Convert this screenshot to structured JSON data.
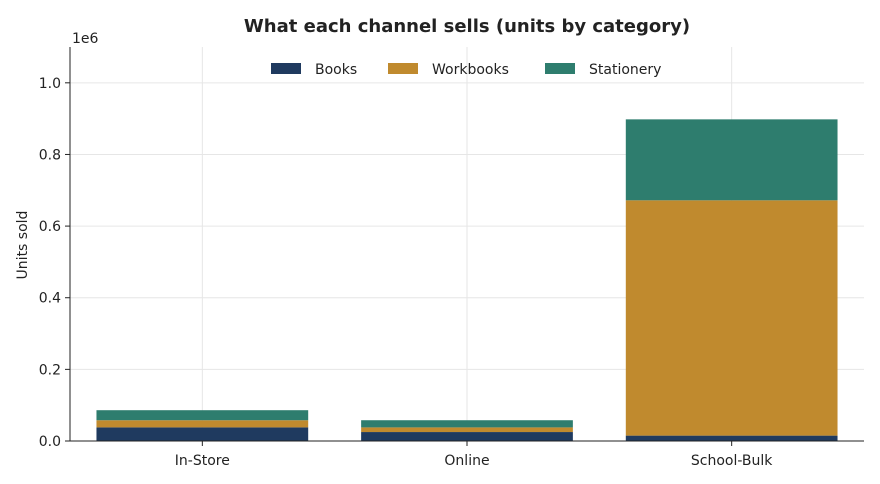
{
  "chart_data": {
    "type": "bar",
    "stacked": true,
    "title": "What each channel sells (units by category)",
    "xlabel": "",
    "ylabel": "Units sold",
    "y_offset_label": "1e6",
    "categories": [
      "In-Store",
      "Online",
      "School-Bulk"
    ],
    "series": [
      {
        "name": "Books",
        "color": "#1f3a5f",
        "values": [
          38000,
          25000,
          15000
        ]
      },
      {
        "name": "Workbooks",
        "color": "#c08a2e",
        "values": [
          20000,
          13000,
          657000
        ]
      },
      {
        "name": "Stationery",
        "color": "#2e7d6e",
        "values": [
          28000,
          20000,
          226000
        ]
      }
    ],
    "ylim": [
      0,
      1100000
    ],
    "yticks": [
      0,
      200000,
      400000,
      600000,
      800000,
      1000000
    ],
    "ytick_labels": [
      "0.0",
      "0.2",
      "0.4",
      "0.6",
      "0.8",
      "1.0"
    ],
    "grid": true,
    "legend_position": "top-center"
  }
}
